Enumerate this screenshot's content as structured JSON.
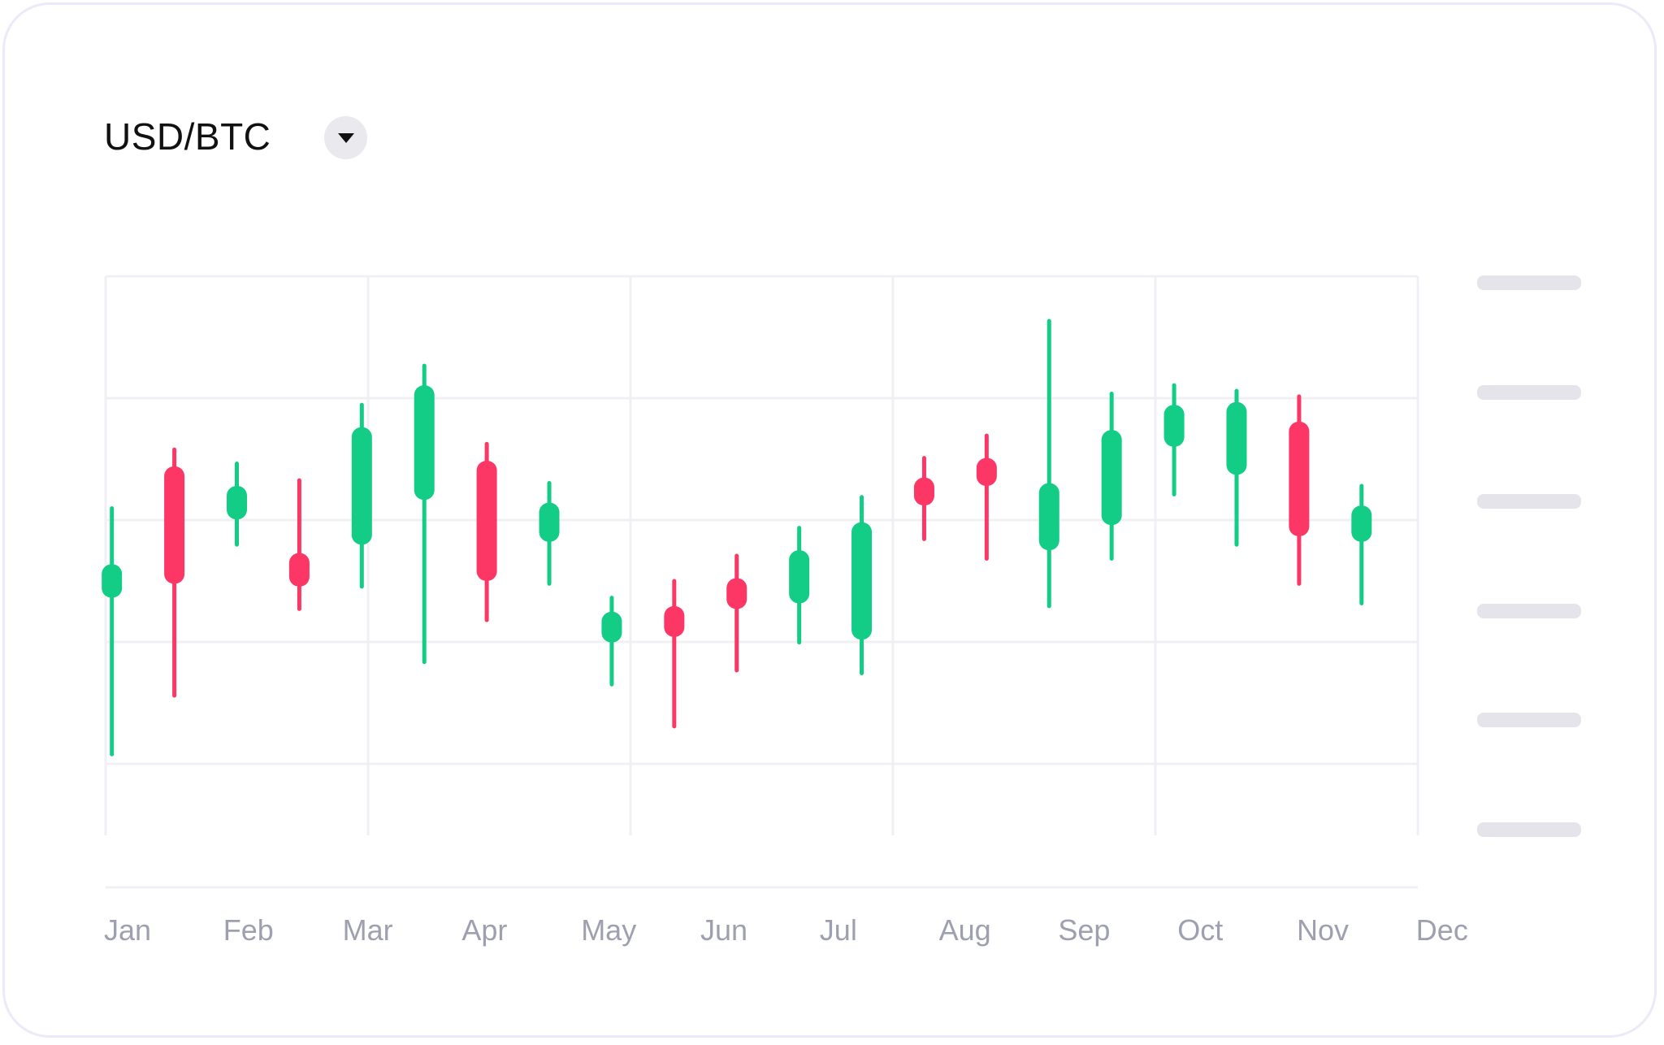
{
  "header": {
    "pair": "USD/BTC",
    "dropdown_icon": "caret-down-icon"
  },
  "chart_data": {
    "type": "candlestick",
    "title": "USD/BTC",
    "x_tick_labels": [
      "Jan",
      "Feb",
      "Mar",
      "Apr",
      "May",
      "Jun",
      "Jul",
      "Aug",
      "Sep",
      "Oct",
      "Nov",
      "Dec"
    ],
    "y_tick_labels_visible": false,
    "y_tick_count": 6,
    "ylim": [
      0,
      100
    ],
    "grid": true,
    "colors": {
      "up": "#13cd86",
      "down": "#fc3766",
      "grid": "#f0f0f4",
      "axis_label": "#9ea0b0",
      "y_placeholder": "#e4e4ea"
    },
    "candles": [
      {
        "x": 0.05,
        "open": 42.5,
        "close": 48.5,
        "high": 58.5,
        "low": 14.5
      },
      {
        "x": 0.55,
        "open": 66.0,
        "close": 45.0,
        "high": 69.0,
        "low": 25.0
      },
      {
        "x": 1.05,
        "open": 56.5,
        "close": 62.5,
        "high": 66.5,
        "low": 52.0
      },
      {
        "x": 1.55,
        "open": 50.5,
        "close": 44.5,
        "high": 63.5,
        "low": 40.5
      },
      {
        "x": 2.05,
        "open": 52.0,
        "close": 73.0,
        "high": 77.0,
        "low": 44.5
      },
      {
        "x": 2.55,
        "open": 60.0,
        "close": 80.5,
        "high": 84.0,
        "low": 31.0
      },
      {
        "x": 3.05,
        "open": 67.0,
        "close": 45.5,
        "high": 70.0,
        "low": 38.5
      },
      {
        "x": 3.55,
        "open": 52.5,
        "close": 59.5,
        "high": 63.0,
        "low": 45.0
      },
      {
        "x": 4.05,
        "open": 34.5,
        "close": 40.0,
        "high": 42.5,
        "low": 27.0
      },
      {
        "x": 4.55,
        "open": 41.0,
        "close": 35.5,
        "high": 45.5,
        "low": 19.5
      },
      {
        "x": 5.05,
        "open": 46.0,
        "close": 40.5,
        "high": 50.0,
        "low": 29.5
      },
      {
        "x": 5.55,
        "open": 41.5,
        "close": 51.0,
        "high": 55.0,
        "low": 34.5
      },
      {
        "x": 6.05,
        "open": 35.0,
        "close": 56.0,
        "high": 60.5,
        "low": 29.0
      },
      {
        "x": 6.55,
        "open": 64.0,
        "close": 59.0,
        "high": 67.5,
        "low": 53.0
      },
      {
        "x": 7.05,
        "open": 67.5,
        "close": 62.5,
        "high": 71.5,
        "low": 49.5
      },
      {
        "x": 7.55,
        "open": 51.0,
        "close": 63.0,
        "high": 92.0,
        "low": 41.0
      },
      {
        "x": 8.05,
        "open": 55.5,
        "close": 72.5,
        "high": 79.0,
        "low": 49.5
      },
      {
        "x": 8.55,
        "open": 69.5,
        "close": 77.0,
        "high": 80.5,
        "low": 61.0
      },
      {
        "x": 9.05,
        "open": 64.5,
        "close": 77.5,
        "high": 79.5,
        "low": 52.0
      },
      {
        "x": 9.55,
        "open": 74.0,
        "close": 53.5,
        "high": 78.5,
        "low": 45.0
      },
      {
        "x": 10.05,
        "open": 52.5,
        "close": 59.0,
        "high": 62.5,
        "low": 41.5
      }
    ]
  }
}
